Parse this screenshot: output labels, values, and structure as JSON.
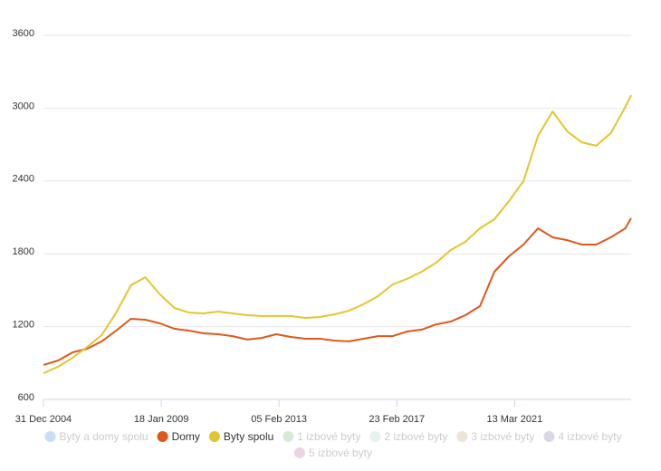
{
  "chart_data": {
    "type": "line",
    "x": [
      2005.0,
      2005.5,
      2006.0,
      2006.5,
      2007.0,
      2007.5,
      2008.0,
      2008.5,
      2009.0,
      2009.5,
      2010.0,
      2010.5,
      2011.0,
      2011.5,
      2012.0,
      2012.5,
      2013.0,
      2013.5,
      2014.0,
      2014.5,
      2015.0,
      2015.5,
      2016.0,
      2016.5,
      2017.0,
      2017.5,
      2018.0,
      2018.5,
      2019.0,
      2019.5,
      2020.0,
      2020.5,
      2021.0,
      2021.5,
      2022.0,
      2022.5,
      2023.0,
      2023.5,
      2024.0,
      2024.5,
      2025.0,
      2025.2
    ],
    "series": [
      {
        "name": "Byty a domy spolu",
        "color": "#c9def5",
        "visible": false
      },
      {
        "name": "Domy",
        "color": "#e0571c",
        "visible": true,
        "values": [
          884,
          921,
          988,
          1018,
          1078,
          1167,
          1264,
          1257,
          1227,
          1182,
          1167,
          1145,
          1137,
          1122,
          1093,
          1107,
          1137,
          1115,
          1100,
          1100,
          1085,
          1078,
          1100,
          1122,
          1122,
          1160,
          1175,
          1219,
          1242,
          1294,
          1369,
          1652,
          1779,
          1876,
          2010,
          1936,
          1913,
          1876,
          1876,
          1936,
          2010,
          2093
        ]
      },
      {
        "name": "Byty spolu",
        "color": "#e2c62f",
        "visible": true,
        "values": [
          816,
          870,
          943,
          1033,
          1130,
          1316,
          1540,
          1607,
          1466,
          1354,
          1316,
          1309,
          1324,
          1309,
          1294,
          1287,
          1287,
          1287,
          1272,
          1279,
          1301,
          1331,
          1384,
          1451,
          1548,
          1593,
          1652,
          1727,
          1831,
          1899,
          2010,
          2085,
          2234,
          2399,
          2772,
          2973,
          2810,
          2719,
          2690,
          2794,
          3010,
          3107
        ]
      },
      {
        "name": "1 izbové byty",
        "color": "#d3ecd5",
        "visible": false
      },
      {
        "name": "2 izbové byty",
        "color": "#e6f2ee",
        "visible": false
      },
      {
        "name": "3 izbové byty",
        "color": "#ece5d6",
        "visible": false
      },
      {
        "name": "4 izbové byty",
        "color": "#d9d6e6",
        "visible": false
      },
      {
        "name": "5 izbové byty",
        "color": "#ead5e2",
        "visible": false
      }
    ],
    "xlim": [
      2004.997,
      2025.2
    ],
    "xticks": [
      {
        "value": 2004.997,
        "label": "31 Dec 2004"
      },
      {
        "value": 2009.047,
        "label": "18 Jan 2009"
      },
      {
        "value": 2013.096,
        "label": "05 Feb 2013"
      },
      {
        "value": 2017.145,
        "label": "23 Feb 2017"
      },
      {
        "value": 2021.195,
        "label": "13 Mar 2021"
      }
    ],
    "ylim": [
      600,
      3600
    ],
    "yticks": [
      600,
      1200,
      1800,
      2400,
      3000,
      3600
    ],
    "grid": true
  }
}
